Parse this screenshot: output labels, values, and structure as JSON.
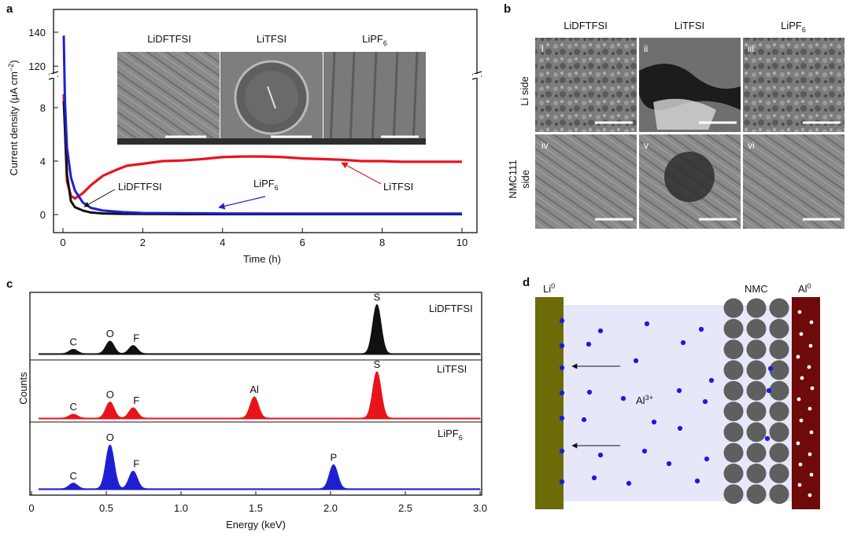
{
  "panels": {
    "a": {
      "letter": "a",
      "xlabel": "Time (h)",
      "ylabel_prefix": "Current density (",
      "ylabel_unit": "μA cm",
      "ylabel_exp": "−2",
      "ylabel_suffix": ")",
      "xticks": [
        "0",
        "2",
        "4",
        "6",
        "8",
        "10"
      ],
      "yticks_lower": [
        "0",
        "4",
        "8"
      ],
      "yticks_upper": [
        "120",
        "140"
      ],
      "series_labels": {
        "lidftfsi": "LiDFTFSI",
        "litfsi": "LiTFSI",
        "lipf6_base": "LiPF",
        "lipf6_sub": "6"
      },
      "inset_titles": {
        "lidftfsi": "LiDFTFSI",
        "litfsi": "LiTFSI",
        "lipf6_base": "LiPF",
        "lipf6_sub": "6"
      }
    },
    "b": {
      "letter": "b",
      "columns": {
        "lidftfsi": "LiDFTFSI",
        "litfsi": "LiTFSI",
        "lipf6_base": "LiPF",
        "lipf6_sub": "6"
      },
      "rows": {
        "li": "Li side",
        "nmc_1": "NMC111",
        "nmc_2": "side"
      },
      "image_tags": [
        "i",
        "ii",
        "iii",
        "iv",
        "v",
        "vi"
      ]
    },
    "c": {
      "letter": "c",
      "xlabel": "Energy (keV)",
      "ylabel": "Counts",
      "xticks": [
        "0",
        "0.5",
        "1.0",
        "1.5",
        "2.0",
        "2.5",
        "3.0"
      ],
      "spectra": {
        "lidftfsi": {
          "label": "LiDFTFSI",
          "peaks": [
            "C",
            "O",
            "F",
            "S"
          ]
        },
        "litfsi": {
          "label": "LiTFSI",
          "peaks": [
            "C",
            "O",
            "F",
            "Al",
            "S"
          ]
        },
        "lipf6": {
          "label_base": "LiPF",
          "label_sub": "6",
          "peaks": [
            "C",
            "O",
            "F",
            "P"
          ]
        }
      }
    },
    "d": {
      "letter": "d",
      "li_base": "Li",
      "li_sup": "0",
      "al_base": "Al",
      "al_sup": "0",
      "nmc": "NMC",
      "ion_base": "Al",
      "ion_sup": "3+"
    }
  },
  "colors": {
    "lidftfsi": "#111111",
    "litfsi": "#e8141c",
    "lipf6": "#1f1fd2",
    "li_electrode": "#6b6b08",
    "al_electrode": "#6e0a0a",
    "electrolyte": "#e6e8fa",
    "nmc_particle": "#5f5f5f",
    "ion": "#1a1ae6"
  },
  "chart_data": [
    {
      "panel": "a",
      "type": "line",
      "xlabel": "Time (h)",
      "ylabel": "Current density (μA cm−2)",
      "xlim": [
        0,
        10
      ],
      "ylim": [
        0,
        140
      ],
      "axis_break": [
        10,
        115
      ],
      "series": [
        {
          "name": "LiDFTFSI",
          "x": [
            0.02,
            0.1,
            0.2,
            0.3,
            0.5,
            0.7,
            1.0,
            1.5,
            2,
            3,
            4,
            6,
            8,
            10
          ],
          "values": [
            8.5,
            3.0,
            1.0,
            0.55,
            0.3,
            0.15,
            0.08,
            0.05,
            0.04,
            0.03,
            0.03,
            0.03,
            0.03,
            0.03
          ]
        },
        {
          "name": "LiTFSI",
          "x": [
            0.02,
            0.1,
            0.2,
            0.3,
            0.5,
            0.7,
            1.0,
            1.3,
            1.6,
            2,
            2.5,
            3,
            3.5,
            4,
            4.5,
            5,
            5.5,
            6,
            6.5,
            7,
            7.5,
            8,
            8.5,
            9,
            9.5,
            10
          ],
          "values": [
            9.0,
            2.5,
            1.4,
            1.2,
            1.6,
            2.2,
            2.9,
            3.3,
            3.65,
            3.8,
            4.0,
            4.05,
            4.15,
            4.3,
            4.35,
            4.35,
            4.3,
            4.2,
            4.15,
            4.1,
            4.0,
            4.0,
            3.95,
            3.95,
            3.95,
            3.95
          ]
        },
        {
          "name": "LiPF6",
          "x": [
            0.02,
            0.05,
            0.1,
            0.2,
            0.3,
            0.5,
            0.7,
            1.0,
            1.5,
            2,
            3,
            4,
            6,
            8,
            10
          ],
          "values": [
            138,
            8.5,
            5.0,
            2.8,
            1.8,
            0.9,
            0.5,
            0.3,
            0.18,
            0.12,
            0.1,
            0.08,
            0.07,
            0.07,
            0.07
          ]
        }
      ]
    },
    {
      "panel": "c",
      "type": "line",
      "xlabel": "Energy (keV)",
      "ylabel": "Counts",
      "xlim": [
        0,
        3.0
      ],
      "series": [
        {
          "name": "LiDFTFSI",
          "peaks": [
            {
              "element": "C",
              "energy": 0.28,
              "height": 0.07
            },
            {
              "element": "O",
              "energy": 0.525,
              "height": 0.2
            },
            {
              "element": "F",
              "energy": 0.68,
              "height": 0.13
            },
            {
              "element": "S",
              "energy": 2.31,
              "height": 0.78
            }
          ]
        },
        {
          "name": "LiTFSI",
          "peaks": [
            {
              "element": "C",
              "energy": 0.28,
              "height": 0.06
            },
            {
              "element": "O",
              "energy": 0.525,
              "height": 0.25
            },
            {
              "element": "F",
              "energy": 0.68,
              "height": 0.16
            },
            {
              "element": "Al",
              "energy": 1.49,
              "height": 0.33
            },
            {
              "element": "S",
              "energy": 2.31,
              "height": 0.72
            }
          ]
        },
        {
          "name": "LiPF6",
          "peaks": [
            {
              "element": "C",
              "energy": 0.28,
              "height": 0.08
            },
            {
              "element": "O",
              "energy": 0.525,
              "height": 0.62
            },
            {
              "element": "F",
              "energy": 0.68,
              "height": 0.25
            },
            {
              "element": "P",
              "energy": 2.02,
              "height": 0.34
            }
          ]
        }
      ]
    }
  ]
}
